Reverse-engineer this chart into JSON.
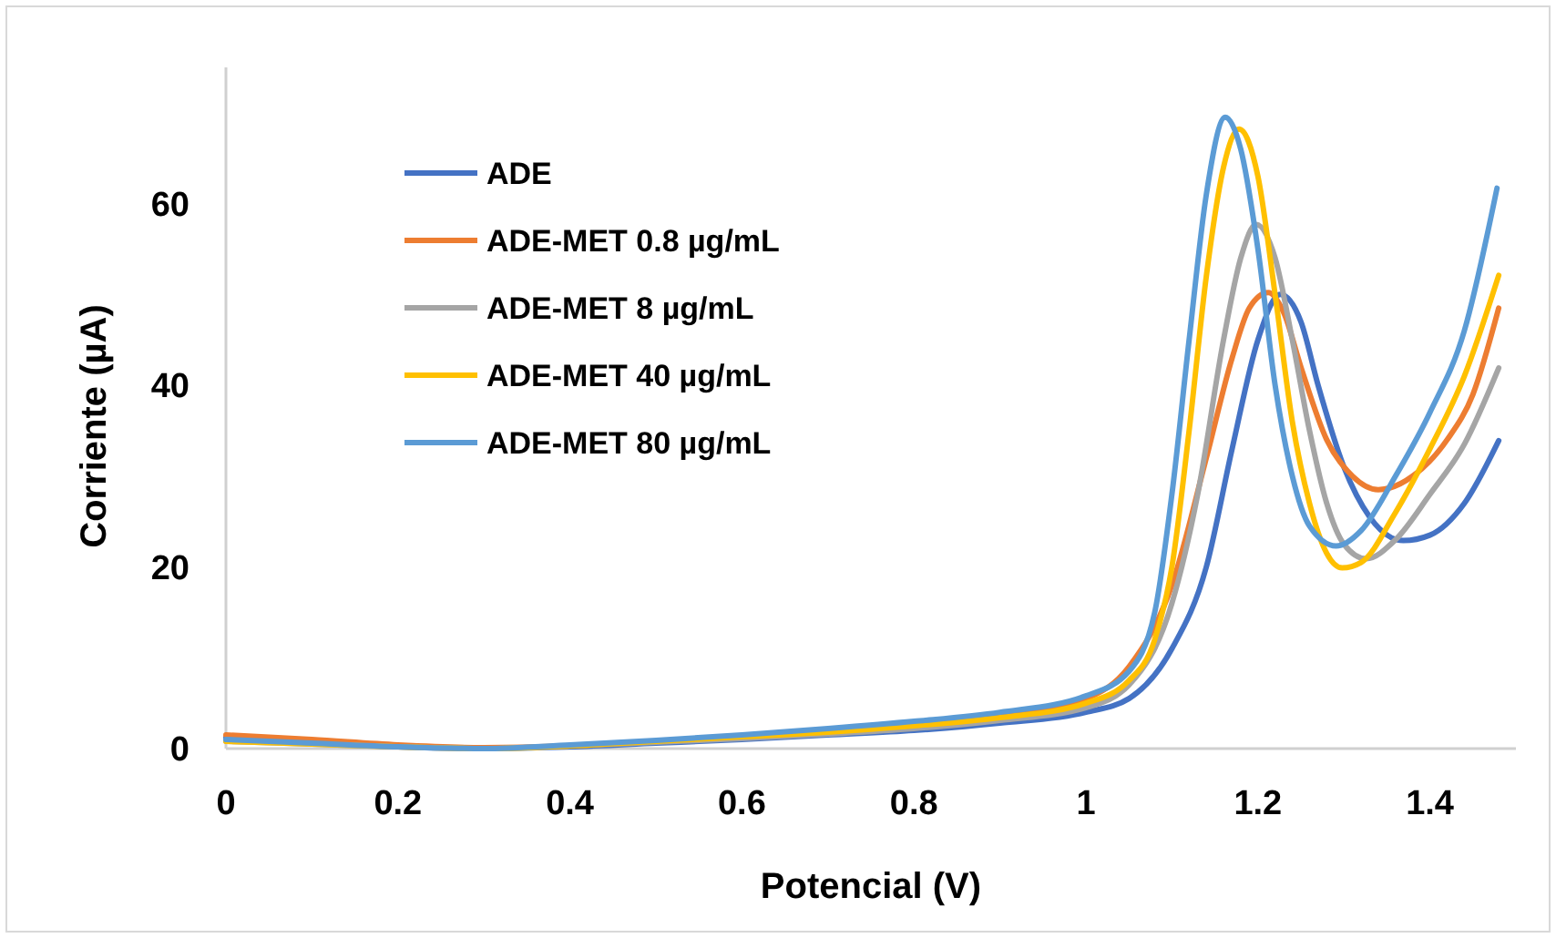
{
  "chart_data": {
    "type": "line",
    "xlabel": "Potencial (V)",
    "ylabel": "Corriente (µA)",
    "xlim": [
      0,
      1.5
    ],
    "xticks": [
      0,
      0.2,
      0.4,
      0.6,
      0.8,
      1,
      1.2,
      1.4
    ],
    "ylim": [
      0,
      75
    ],
    "yticks": [
      0,
      20,
      40,
      60
    ],
    "grid": false,
    "legend": "top left",
    "marker": "none",
    "line_style": "solid",
    "series": [
      {
        "name": "ADE",
        "color": "#4472c4",
        "x": [
          0,
          0.1,
          0.2,
          0.3,
          0.4,
          0.5,
          0.6,
          0.7,
          0.8,
          0.9,
          1.0,
          1.05,
          1.1,
          1.14,
          1.17,
          1.2,
          1.226,
          1.25,
          1.27,
          1.3,
          1.33,
          1.369,
          1.4,
          1.44,
          1.48
        ],
        "values": [
          1.2,
          0.7,
          0.2,
          0,
          0.2,
          0.6,
          1.0,
          1.5,
          2.0,
          2.8,
          4.0,
          5.5,
          11,
          20,
          33,
          45,
          50,
          47,
          40,
          31,
          25.5,
          22.9,
          23.5,
          27,
          33.9
        ]
      },
      {
        "name": "ADE-MET 0.8 µg/mL",
        "color": "#ed7d31",
        "x": [
          0,
          0.1,
          0.2,
          0.3,
          0.4,
          0.5,
          0.6,
          0.7,
          0.8,
          0.9,
          1.0,
          1.05,
          1.1,
          1.14,
          1.17,
          1.19,
          1.212,
          1.23,
          1.25,
          1.28,
          1.31,
          1.34,
          1.38,
          1.42,
          1.45,
          1.48
        ],
        "values": [
          1.5,
          1.0,
          0.4,
          0.1,
          0.3,
          0.8,
          1.3,
          1.9,
          2.6,
          3.6,
          5.5,
          9,
          18,
          32,
          43,
          48.5,
          50.2,
          48,
          42,
          34,
          30,
          28.5,
          30,
          34,
          39,
          48.5
        ]
      },
      {
        "name": "ADE-MET 8 µg/mL",
        "color": "#a5a5a5",
        "x": [
          0,
          0.1,
          0.2,
          0.3,
          0.4,
          0.5,
          0.6,
          0.7,
          0.8,
          0.9,
          1.0,
          1.05,
          1.1,
          1.13,
          1.16,
          1.18,
          1.198,
          1.22,
          1.24,
          1.26,
          1.28,
          1.3,
          1.326,
          1.36,
          1.4,
          1.44,
          1.48
        ],
        "values": [
          0.8,
          0.5,
          0.2,
          0,
          0.3,
          0.7,
          1.1,
          1.6,
          2.2,
          3.1,
          4.5,
          7,
          16,
          28,
          45,
          54,
          57.7,
          54,
          45,
          35,
          27,
          22.5,
          20.9,
          23,
          28,
          33.5,
          41.9
        ]
      },
      {
        "name": "ADE-MET 40 µg/mL",
        "color": "#ffc000",
        "x": [
          0,
          0.1,
          0.2,
          0.3,
          0.4,
          0.5,
          0.6,
          0.7,
          0.8,
          0.9,
          1.0,
          1.05,
          1.08,
          1.1,
          1.12,
          1.14,
          1.16,
          1.178,
          1.2,
          1.22,
          1.24,
          1.26,
          1.28,
          1.298,
          1.32,
          1.36,
          1.4,
          1.44,
          1.48
        ],
        "values": [
          0.8,
          0.5,
          0.2,
          0,
          0.3,
          0.8,
          1.3,
          1.8,
          2.5,
          3.4,
          5,
          7.5,
          12,
          20,
          35,
          52,
          64,
          68.2,
          63,
          50,
          36,
          27,
          21.5,
          19.9,
          20.5,
          26,
          33,
          41,
          52.1
        ]
      },
      {
        "name": "ADE-MET 80 µg/mL",
        "color": "#5b9bd5",
        "x": [
          0,
          0.1,
          0.2,
          0.3,
          0.4,
          0.5,
          0.6,
          0.7,
          0.8,
          0.9,
          1.0,
          1.05,
          1.08,
          1.1,
          1.12,
          1.14,
          1.162,
          1.18,
          1.2,
          1.22,
          1.24,
          1.26,
          1.291,
          1.32,
          1.36,
          1.4,
          1.44,
          1.478
        ],
        "values": [
          1.0,
          0.6,
          0.2,
          0,
          0.4,
          0.9,
          1.5,
          2.2,
          3.0,
          4.0,
          5.8,
          8.5,
          15,
          28,
          45,
          61,
          69.5,
          66,
          55,
          40,
          30,
          24.5,
          22.3,
          24,
          30,
          37,
          46,
          61.7
        ]
      }
    ]
  }
}
